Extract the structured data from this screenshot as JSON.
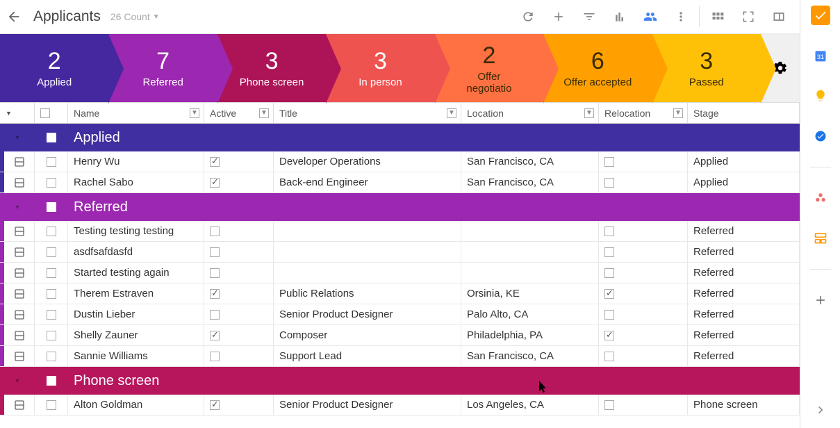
{
  "toolbar": {
    "title": "Applicants",
    "count_label": "26 Count"
  },
  "pipeline": {
    "stages": [
      {
        "count": "2",
        "label": "Applied",
        "color": "#4527a0"
      },
      {
        "count": "7",
        "label": "Referred",
        "color": "#9c27b0"
      },
      {
        "count": "3",
        "label": "Phone screen",
        "color": "#ad1457"
      },
      {
        "count": "3",
        "label": "In person",
        "color": "#ef5350"
      },
      {
        "count": "2",
        "label": "Offer\nnegotiatio",
        "color": "#ff7043",
        "light": false
      },
      {
        "count": "6",
        "label": "Offer accepted",
        "color": "#ffa000"
      },
      {
        "count": "3",
        "label": "Passed",
        "color": "#ffc107"
      }
    ]
  },
  "columns": [
    {
      "label": "",
      "filter": false,
      "key": "menu"
    },
    {
      "label": "",
      "filter": false,
      "key": "cb"
    },
    {
      "label": "Name",
      "filter": true
    },
    {
      "label": "Active",
      "filter": true
    },
    {
      "label": "Title",
      "filter": true
    },
    {
      "label": "Location",
      "filter": true
    },
    {
      "label": "Relocation",
      "filter": true
    },
    {
      "label": "Stage",
      "filter": false
    }
  ],
  "groups": [
    {
      "label": "Applied",
      "color": "#402fa0",
      "rows": [
        {
          "name": "Henry Wu",
          "active": true,
          "title": "Developer Operations",
          "location": "San Francisco, CA",
          "relocation": false,
          "stage": "Applied",
          "stripe": "#402fa0"
        },
        {
          "name": "Rachel Sabo",
          "active": true,
          "title": "Back-end Engineer",
          "location": "San Francisco, CA",
          "relocation": false,
          "stage": "Applied",
          "stripe": "#402fa0"
        }
      ]
    },
    {
      "label": "Referred",
      "color": "#9c27b0",
      "rows": [
        {
          "name": "Testing testing testing",
          "active": false,
          "title": "",
          "location": "",
          "relocation": false,
          "stage": "Referred",
          "stripe": "#9c27b0"
        },
        {
          "name": "asdfsafdasfd",
          "active": false,
          "title": "",
          "location": "",
          "relocation": false,
          "stage": "Referred",
          "stripe": "#9c27b0"
        },
        {
          "name": "Started testing again",
          "active": false,
          "title": "",
          "location": "",
          "relocation": false,
          "stage": "Referred",
          "stripe": "#9c27b0"
        },
        {
          "name": "Therem Estraven",
          "active": true,
          "title": "Public Relations",
          "location": "Orsinia, KE",
          "relocation": true,
          "stage": "Referred",
          "stripe": "#9c27b0"
        },
        {
          "name": "Dustin Lieber",
          "active": false,
          "title": "Senior Product Designer",
          "location": "Palo Alto, CA",
          "relocation": false,
          "stage": "Referred",
          "stripe": "#9c27b0"
        },
        {
          "name": "Shelly Zauner",
          "active": true,
          "title": "Composer",
          "location": "Philadelphia, PA",
          "relocation": true,
          "stage": "Referred",
          "stripe": "#9c27b0"
        },
        {
          "name": "Sannie Williams",
          "active": false,
          "title": "Support Lead",
          "location": "San Francisco, CA",
          "relocation": false,
          "stage": "Referred",
          "stripe": "#9c27b0"
        }
      ]
    },
    {
      "label": "Phone screen",
      "color": "#b7165c",
      "rows": [
        {
          "name": "Alton Goldman",
          "active": true,
          "title": "Senior Product Designer",
          "location": "Los Angeles, CA",
          "relocation": false,
          "stage": "Phone screen",
          "stripe": "#b7165c"
        }
      ]
    }
  ],
  "sidebar_icons": [
    "todo",
    "calendar",
    "keep",
    "tasks",
    "asana",
    "tables",
    "add"
  ]
}
